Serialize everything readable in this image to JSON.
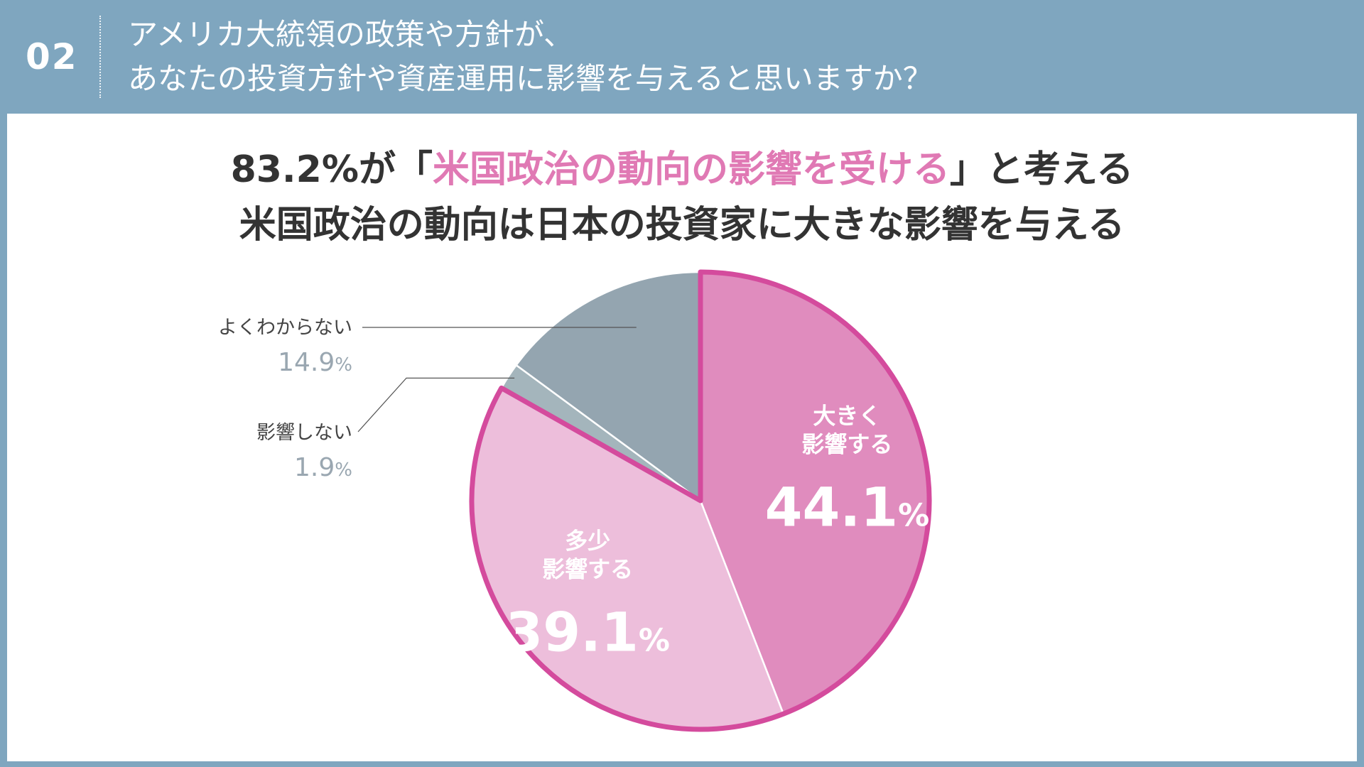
{
  "header": {
    "question_number": "02",
    "question_line1": "アメリカ大統領の政策や方針が、",
    "question_line2": "あなたの投資方針や資産運用に影響を与えると思いますか？"
  },
  "headline": {
    "line1_prefix": "83.2%が「",
    "line1_highlight": "米国政治の動向の影響を受ける",
    "line1_suffix": "」と考える",
    "line2": "米国政治の動向は日本の投資家に大きな影響を与える"
  },
  "colors": {
    "frame": "#7fa6bf",
    "highlight": "#e079b4",
    "slice_large": "#e08cbe",
    "slice_some": "#edbedb",
    "slice_none": "#a4b5bc",
    "slice_unknown": "#94a5b0",
    "pink_outline": "#d44b9d",
    "label_gray": "#9aa7b1",
    "label_dark": "#444444"
  },
  "chart_data": {
    "type": "pie",
    "start": "12 o'clock",
    "direction": "clockwise",
    "slices": [
      {
        "name": "大きく影響する",
        "label_lines": [
          "大きく",
          "影響する"
        ],
        "value": 44.1,
        "value_label": "44.1",
        "unit": "%",
        "label_position": "inside",
        "highlighted": true
      },
      {
        "name": "多少影響する",
        "label_lines": [
          "多少",
          "影響する"
        ],
        "value": 39.1,
        "value_label": "39.1",
        "unit": "%",
        "label_position": "inside",
        "highlighted": true
      },
      {
        "name": "影響しない",
        "label_lines": [
          "影響しない"
        ],
        "value": 1.9,
        "value_label": "1.9",
        "unit": "%",
        "label_position": "outside-left",
        "highlighted": false
      },
      {
        "name": "よくわからない",
        "label_lines": [
          "よくわからない"
        ],
        "value": 14.9,
        "value_label": "14.9",
        "unit": "%",
        "label_position": "outside-left",
        "highlighted": false
      }
    ],
    "highlight_total": "83.2%"
  }
}
